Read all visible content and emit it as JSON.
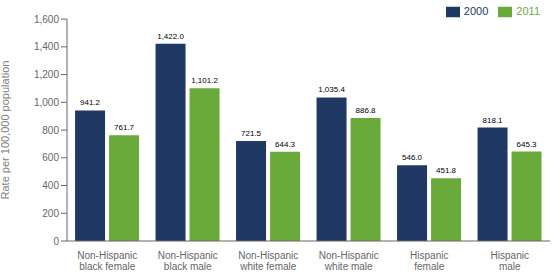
{
  "chart_data": {
    "type": "bar",
    "categories": [
      "Non-Hispanic\nblack female",
      "Non-Hispanic\nblack male",
      "Non-Hispanic\nwhite female",
      "Non-Hispanic\nwhite male",
      "Hispanic\nfemale",
      "Hispanic\nmale"
    ],
    "series": [
      {
        "name": "2000",
        "color": "#1f3864",
        "values": [
          941.2,
          1422.0,
          721.5,
          1035.4,
          546.0,
          818.1
        ],
        "value_labels": [
          "941.2",
          "1,422.0",
          "721.5",
          "1,035.4",
          "546.0",
          "818.1"
        ]
      },
      {
        "name": "2011",
        "color": "#6aaa3a",
        "values": [
          761.7,
          1101.2,
          644.3,
          886.8,
          451.8,
          645.3
        ],
        "value_labels": [
          "761.7",
          "1,101.2",
          "644.3",
          "886.8",
          "451.8",
          "645.3"
        ]
      }
    ],
    "ylabel": "Rate per 100,000 population",
    "ylim": [
      0,
      1600
    ],
    "yticks": [
      0,
      200,
      400,
      600,
      800,
      {
        "value": 1000,
        "label": "1,000"
      },
      {
        "value": 1200,
        "label": "1,200"
      },
      {
        "value": 1400,
        "label": "1,400"
      },
      {
        "value": 1600,
        "label": "1,600"
      }
    ],
    "legend": "upper right",
    "grid": false,
    "data_labels": true
  }
}
